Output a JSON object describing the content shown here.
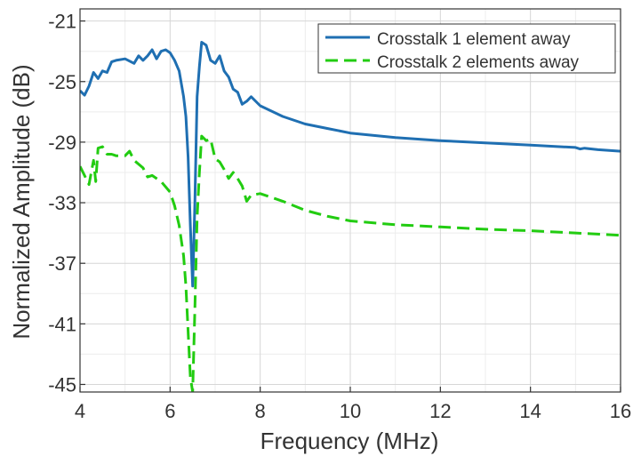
{
  "chart_data": {
    "type": "line",
    "title": "",
    "xlabel": "Frequency (MHz)",
    "ylabel": "Normalized Amplitude (dB)",
    "xlim": [
      4,
      16
    ],
    "ylim": [
      -45.5,
      -20.2
    ],
    "xticks": [
      4,
      6,
      8,
      10,
      12,
      14,
      16
    ],
    "yticks": [
      -21,
      -25,
      -29,
      -33,
      -37,
      -41,
      -45
    ],
    "grid": true,
    "legend_position": "top-right",
    "series": [
      {
        "name": "Crosstalk 1 element away",
        "color": "#1f6fb2",
        "style": "solid",
        "x": [
          4.0,
          4.1,
          4.2,
          4.3,
          4.4,
          4.5,
          4.6,
          4.7,
          4.8,
          5.0,
          5.2,
          5.3,
          5.4,
          5.5,
          5.6,
          5.7,
          5.8,
          5.9,
          6.0,
          6.1,
          6.2,
          6.3,
          6.35,
          6.4,
          6.45,
          6.5,
          6.55,
          6.6,
          6.65,
          6.7,
          6.8,
          6.9,
          7.0,
          7.1,
          7.2,
          7.3,
          7.4,
          7.5,
          7.6,
          7.7,
          7.8,
          8.0,
          8.5,
          9.0,
          9.5,
          10.0,
          11.0,
          12.0,
          13.0,
          14.0,
          15.0,
          15.1,
          15.2,
          15.5,
          16.0
        ],
        "y": [
          -25.6,
          -25.9,
          -25.3,
          -24.4,
          -24.8,
          -24.3,
          -24.4,
          -23.7,
          -23.6,
          -23.5,
          -23.8,
          -23.3,
          -23.6,
          -23.3,
          -22.9,
          -23.5,
          -23.0,
          -22.9,
          -23.1,
          -23.6,
          -24.3,
          -26.0,
          -27.3,
          -30.0,
          -34.5,
          -38.5,
          -33.0,
          -26.0,
          -24.0,
          -22.4,
          -22.6,
          -23.6,
          -23.8,
          -23.3,
          -24.3,
          -24.7,
          -25.5,
          -25.7,
          -26.5,
          -26.3,
          -26.0,
          -26.6,
          -27.3,
          -27.8,
          -28.1,
          -28.4,
          -28.7,
          -28.9,
          -29.05,
          -29.2,
          -29.35,
          -29.45,
          -29.4,
          -29.5,
          -29.6
        ]
      },
      {
        "name": "Crosstalk 2 elements away",
        "color": "#22cc11",
        "style": "dashed",
        "x": [
          4.0,
          4.1,
          4.2,
          4.3,
          4.35,
          4.4,
          4.5,
          4.6,
          4.7,
          4.8,
          5.0,
          5.1,
          5.2,
          5.4,
          5.5,
          5.6,
          5.8,
          6.0,
          6.1,
          6.2,
          6.3,
          6.35,
          6.4,
          6.45,
          6.5,
          6.55,
          6.6,
          6.65,
          6.7,
          6.8,
          6.9,
          7.0,
          7.1,
          7.2,
          7.3,
          7.4,
          7.5,
          7.6,
          7.7,
          7.8,
          8.0,
          8.5,
          9.0,
          9.5,
          10.0,
          11.0,
          12.0,
          13.0,
          14.0,
          15.0,
          16.0
        ],
        "y": [
          -30.6,
          -31.2,
          -31.8,
          -30.2,
          -31.6,
          -29.4,
          -29.3,
          -29.8,
          -29.8,
          -29.9,
          -29.9,
          -29.6,
          -30.2,
          -30.7,
          -31.3,
          -31.2,
          -31.6,
          -32.3,
          -33.2,
          -34.5,
          -36.5,
          -38.5,
          -41.5,
          -44.5,
          -45.5,
          -40.0,
          -34.0,
          -31.0,
          -28.6,
          -28.9,
          -28.8,
          -30.1,
          -30.3,
          -30.8,
          -31.4,
          -31.0,
          -31.4,
          -31.9,
          -32.9,
          -32.5,
          -32.4,
          -32.9,
          -33.5,
          -33.9,
          -34.2,
          -34.45,
          -34.6,
          -34.75,
          -34.85,
          -35.0,
          -35.15
        ]
      }
    ]
  }
}
